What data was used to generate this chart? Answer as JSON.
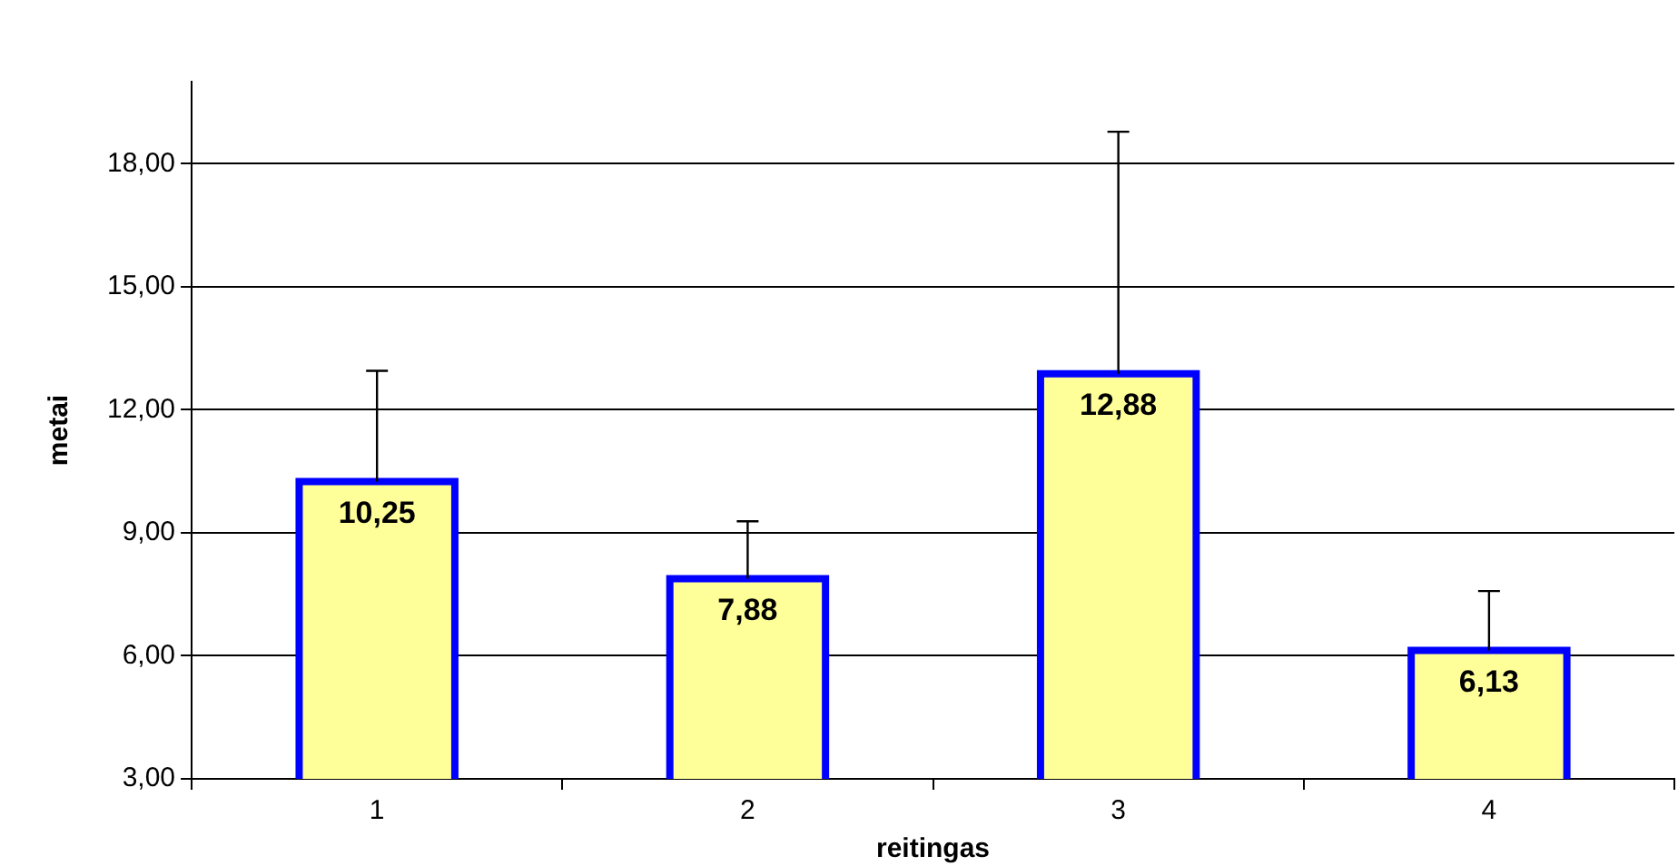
{
  "chart_data": {
    "type": "bar",
    "xlabel": "reitingas",
    "ylabel": "metai",
    "categories": [
      "1",
      "2",
      "3",
      "4"
    ],
    "series": [
      {
        "color": "#ffff99",
        "values": [
          10.25,
          7.88,
          12.88,
          6.13
        ],
        "value_labels": [
          "10,25",
          "7,88",
          "12,88",
          "6,13"
        ],
        "errors": [
          [
            10.25,
            12.95
          ],
          [
            7.88,
            9.28
          ],
          [
            12.88,
            18.78
          ],
          [
            6.13,
            7.58
          ]
        ]
      }
    ],
    "ylim": [
      3,
      20
    ],
    "yticks": [
      {
        "value": 3,
        "label": "3,00"
      },
      {
        "value": 6,
        "label": "6,00"
      },
      {
        "value": 9,
        "label": "9,00"
      },
      {
        "value": 12,
        "label": "12,00"
      },
      {
        "value": 15,
        "label": "15,00"
      },
      {
        "value": 18,
        "label": "18,00"
      }
    ],
    "grid": "y",
    "legend": false
  }
}
